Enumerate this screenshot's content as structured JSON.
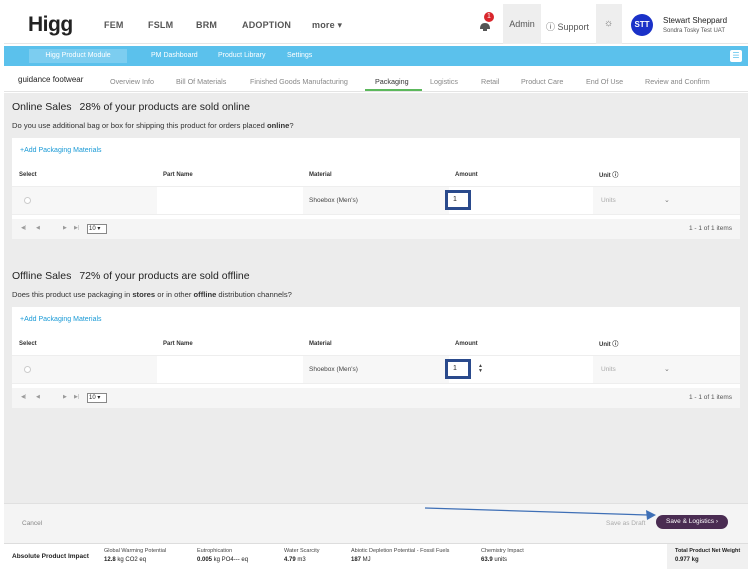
{
  "nav": {
    "logo": "Higg",
    "links": [
      "FEM",
      "FSLM",
      "BRM",
      "ADOPTION",
      "more ▾"
    ],
    "notification_count": "1",
    "admin": "Admin",
    "support": "ⓘ Support",
    "avatar_initials": "STT",
    "user_name": "Stewart Sheppard",
    "user_org": "Sondra Tosky Test UAT"
  },
  "module_bar": {
    "module_button": "Higg Product Module",
    "links": [
      "PM Dashboard",
      "Product Library",
      "Settings"
    ]
  },
  "tabs": {
    "product_name": "guidance footwear",
    "items": [
      "Overview Info",
      "Bill Of Materials",
      "Finished Goods Manufacturing",
      "Packaging",
      "Logistics",
      "Retail",
      "Product Care",
      "End Of Use",
      "Review and Confirm"
    ],
    "active": "Packaging"
  },
  "online": {
    "title": "Online Sales",
    "pct_text": "28% of your products are sold online",
    "question_pre": "Do you use additional bag or box for shipping this product for orders placed ",
    "question_bold": "online",
    "question_post": "?",
    "add_link": "+Add Packaging Materials",
    "columns": [
      "Select",
      "Part Name",
      "Material",
      "Amount",
      "Unit ⓘ"
    ],
    "row": {
      "part_name": "",
      "material": "Shoebox (Men's)",
      "amount": "1",
      "unit_placeholder": "Units"
    },
    "page_size": "10 ▾",
    "page_count": "1 - 1 of 1 items"
  },
  "offline": {
    "title": "Offline Sales",
    "pct_text": "72% of your products are sold offline",
    "question_pre": "Does this product use packaging in ",
    "question_bold1": "stores",
    "question_mid": " or in other ",
    "question_bold2": "offline",
    "question_post": " distribution channels?",
    "add_link": "+Add Packaging Materials",
    "columns": [
      "Select",
      "Part Name",
      "Material",
      "Amount",
      "Unit ⓘ"
    ],
    "row": {
      "part_name": "",
      "material": "Shoebox (Men's)",
      "amount": "1",
      "unit_placeholder": "Units"
    },
    "page_size": "10 ▾",
    "page_count": "1 - 1 of 1 items"
  },
  "actions": {
    "cancel": "Cancel",
    "save_draft": "Save as Draft",
    "save_next": "Save & Logistics ›"
  },
  "impact": {
    "title": "Absolute Product Impact",
    "metrics": [
      {
        "label": "Global Warming Potential",
        "value": "12.8",
        "unit": " kg CO2 eq"
      },
      {
        "label": "Eutrophication",
        "value": "0.005",
        "unit": " kg PO4--- eq"
      },
      {
        "label": "Water Scarcity",
        "value": "4.79",
        "unit": " m3"
      },
      {
        "label": "Abiotic Depletion Potential - Fossil Fuels",
        "value": "187",
        "unit": " MJ"
      },
      {
        "label": "Chemistry Impact",
        "value": "63.9",
        "unit": " units"
      }
    ],
    "total_label": "Total Product Net Weight",
    "total_value": "0.977 kg"
  },
  "colors": {
    "module_bar": "#5bc1ec",
    "active_tab_underline": "#5cb85c",
    "save_button": "#4a2c52",
    "avatar": "#1a31c8",
    "highlight_box": "#2a4a8c",
    "annotation_arrow": "#3e6fb6"
  }
}
